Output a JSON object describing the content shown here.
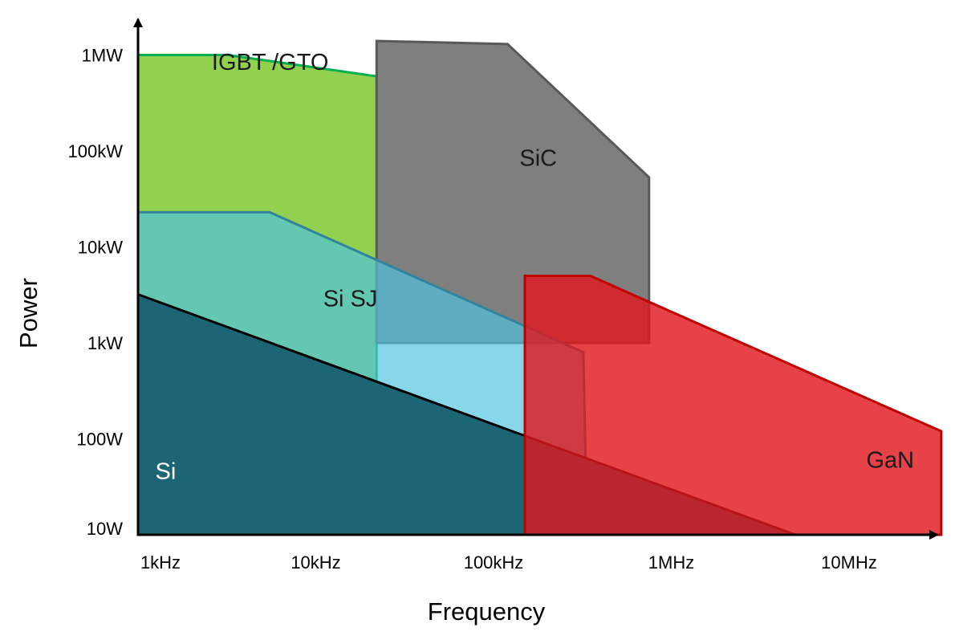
{
  "chart_data": {
    "type": "area",
    "title": "",
    "xlabel": "Frequency",
    "ylabel": "Power",
    "xscale": "log",
    "yscale": "log",
    "xlim_hz": [
      1000,
      40000000
    ],
    "ylim_w": [
      10,
      2000000
    ],
    "xticks": [
      {
        "value": 1000,
        "label": "1kHz"
      },
      {
        "value": 10000,
        "label": "10kHz"
      },
      {
        "value": 100000,
        "label": "100kHz"
      },
      {
        "value": 1000000,
        "label": "1MHz"
      },
      {
        "value": 10000000,
        "label": "10MHz"
      }
    ],
    "yticks": [
      {
        "value": 10,
        "label": "10W"
      },
      {
        "value": 100,
        "label": "100W"
      },
      {
        "value": 1000,
        "label": "1kW"
      },
      {
        "value": 10000,
        "label": "10kW"
      },
      {
        "value": 100000,
        "label": "100kW"
      },
      {
        "value": 1000000,
        "label": "1MW"
      }
    ],
    "grid": false,
    "legend": "none",
    "series": [
      {
        "name": "IGBT /GTO",
        "fill": "#92d050",
        "stroke": "#00b050",
        "opacity": 1,
        "label_at": {
          "f_hz": 2600,
          "p_w": 700000
        },
        "label_color": "#1a1a1a",
        "outline": [
          [
            1000,
            1000000
          ],
          [
            3200,
            1000000
          ],
          [
            22000,
            600000
          ],
          [
            22000,
            400
          ],
          [
            1000,
            400
          ]
        ]
      },
      {
        "name": "SiC",
        "fill": "#7f7f7f",
        "stroke": "#595959",
        "opacity": 1,
        "label_at": {
          "f_hz": 140000,
          "p_w": 70000
        },
        "label_color": "#1a1a1a",
        "outline": [
          [
            22000,
            1400000
          ],
          [
            120000,
            1300000
          ],
          [
            750000,
            53000
          ],
          [
            750000,
            1000
          ],
          [
            22000,
            1000
          ]
        ]
      },
      {
        "name": "Si SJ",
        "fill": "#4ec3e0",
        "stroke": "#31849b",
        "opacity": 0.68,
        "label_at": {
          "f_hz": 11000,
          "p_w": 2400
        },
        "label_color": "#1a1a1a",
        "outline": [
          [
            1000,
            23000
          ],
          [
            5500,
            23000
          ],
          [
            320000,
            800
          ],
          [
            330000,
            50
          ],
          [
            1000,
            50
          ]
        ]
      },
      {
        "name": "Si",
        "fill": "#1b6575",
        "stroke": "#000000",
        "opacity": 1,
        "label_at": {
          "f_hz": 1250,
          "p_w": 38
        },
        "label_color": "#ffffff",
        "outline": [
          [
            1000,
            3200
          ],
          [
            5000000,
            10
          ],
          [
            1000,
            10
          ]
        ]
      },
      {
        "name": "GaN",
        "fill": "#e0191e",
        "stroke": "#c00000",
        "opacity": 0.82,
        "label_at": {
          "f_hz": 12500000,
          "p_w": 50
        },
        "label_color": "#1a1a1a",
        "outline": [
          [
            150000,
            5000
          ],
          [
            350000,
            5000
          ],
          [
            33000000,
            120
          ],
          [
            33000000,
            10
          ],
          [
            150000,
            10
          ]
        ]
      }
    ]
  }
}
